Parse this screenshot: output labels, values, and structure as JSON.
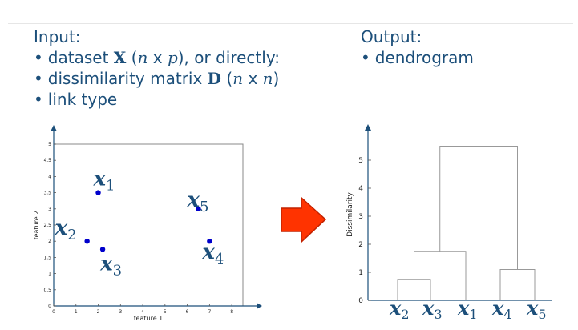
{
  "input": {
    "heading": "Input:",
    "item1": {
      "bullet": "•",
      "pre": "dataset",
      "sym": "X",
      "open": "(",
      "n": "n",
      "mid": "x",
      "p": "p",
      "close": "), or directly:"
    },
    "item2": {
      "bullet": "•",
      "pre": "dissimilarity matrix",
      "sym": "D",
      "open": "(",
      "n1": "n",
      "mid": "x",
      "n2": "n",
      "close": ")"
    },
    "item3": {
      "bullet": "•",
      "text": "link type"
    }
  },
  "output": {
    "heading": "Output:",
    "item1": {
      "bullet": "•",
      "text": "dendrogram"
    }
  },
  "scatter": {
    "xlabel": "feature 1",
    "ylabel": "feature 2",
    "xticks": [
      "0",
      "1",
      "2",
      "3",
      "4",
      "5",
      "6",
      "7",
      "8"
    ],
    "yticks": [
      "0",
      "0.5",
      "1",
      "1.5",
      "2",
      "2.5",
      "3",
      "3.5",
      "4",
      "4.5",
      "5"
    ],
    "point_color": "#0000cc",
    "points": [
      {
        "x": 2,
        "y": 3.5,
        "label": "x",
        "sub": "1"
      },
      {
        "x": 1.5,
        "y": 2,
        "label": "x",
        "sub": "2"
      },
      {
        "x": 2.2,
        "y": 1.75,
        "label": "x",
        "sub": "3"
      },
      {
        "x": 7,
        "y": 2,
        "label": "x",
        "sub": "4"
      },
      {
        "x": 6.5,
        "y": 3,
        "label": "x",
        "sub": "5"
      }
    ]
  },
  "arrow": {
    "color": "#ff3300"
  },
  "dendrogram": {
    "ylabel": "Dissimilarity",
    "yticks": [
      "0",
      "1",
      "2",
      "3",
      "4",
      "5"
    ],
    "leaves": [
      {
        "label": "x",
        "sub": "2"
      },
      {
        "label": "x",
        "sub": "3"
      },
      {
        "label": "x",
        "sub": "1"
      },
      {
        "label": "x",
        "sub": "4"
      },
      {
        "label": "x",
        "sub": "5"
      }
    ],
    "merges": [
      {
        "left": 0,
        "right": 1,
        "height": 0.75
      },
      {
        "left": 3,
        "right": 4,
        "height": 1.1
      },
      {
        "left": "m0",
        "right": 2,
        "height": 1.75
      },
      {
        "left": "m2",
        "right": "m1",
        "height": 5.5
      }
    ]
  }
}
